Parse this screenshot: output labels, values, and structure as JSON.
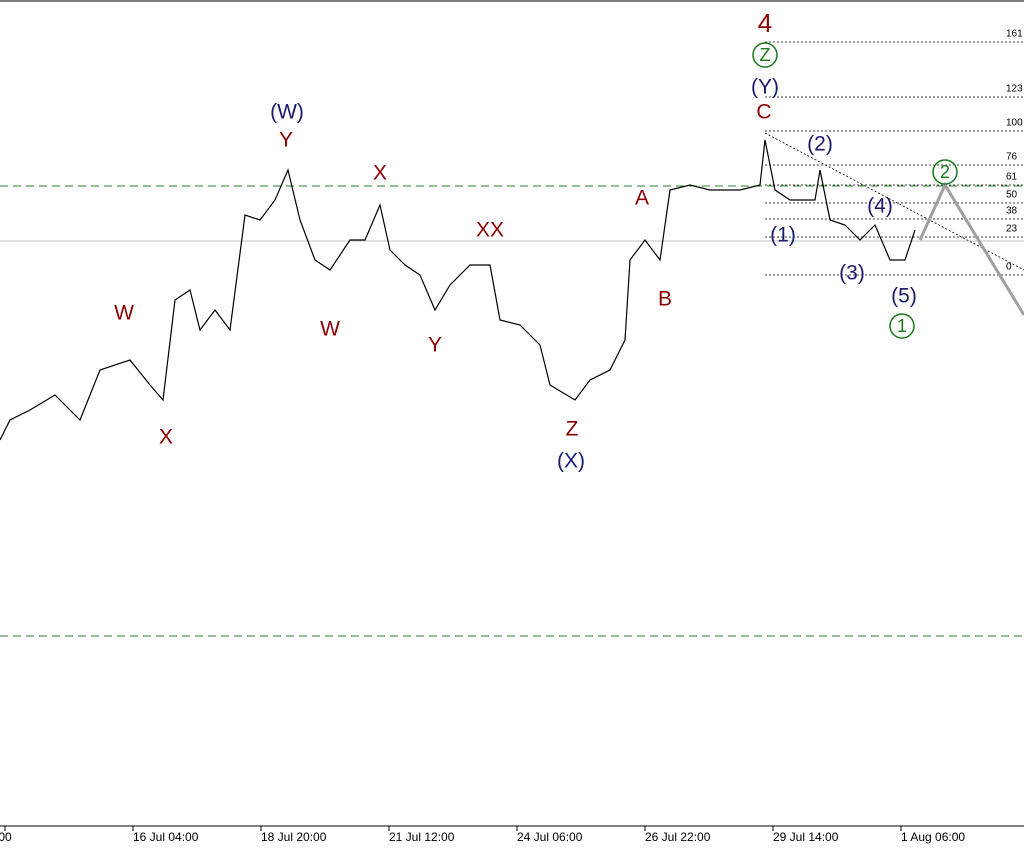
{
  "chart_data": {
    "type": "line",
    "xlim": [
      -2.5,
      509.5
    ],
    "ylim": [
      0,
      826
    ],
    "xticks": [
      {
        "value": 0,
        "label": "00"
      },
      {
        "value": 64,
        "label": "16 Jul 04:00"
      },
      {
        "value": 128,
        "label": "18 Jul 20:00"
      },
      {
        "value": 192,
        "label": "21 Jul 12:00"
      },
      {
        "value": 256,
        "label": "24 Jul 06:00"
      },
      {
        "value": 320,
        "label": "26 Jul 22:00"
      },
      {
        "value": 384,
        "label": "29 Jul 14:00"
      },
      {
        "value": 448,
        "label": "1 Aug 06:00"
      }
    ],
    "series": [
      {
        "color": "#000000",
        "x": [
          -2.5,
          2.5,
          12.5,
          25,
          37.5,
          47.5,
          62.5,
          72.5,
          79,
          85,
          92.5,
          97.5,
          105,
          112.5,
          120,
          127.5,
          135,
          141.5,
          147.5,
          155,
          162.5,
          172.5,
          180,
          187.5,
          192.5,
          200,
          207.5,
          215,
          222.5,
          232.5,
          242.5,
          247.5,
          257.5,
          267.5,
          272.5,
          285,
          292.5,
          302.5,
          310,
          312.5,
          320,
          327.5,
          332.5,
          342.5,
          352.5,
          367.5,
          377.5,
          380,
          385,
          392.5,
          405,
          407.5,
          412.5,
          420,
          427.5,
          435,
          442.5,
          450,
          455
        ],
        "values": [
          386,
          406,
          416,
          431,
          406,
          456,
          466,
          441,
          426,
          526,
          536,
          496,
          516,
          496,
          611,
          606,
          626,
          656,
          606,
          566,
          556,
          586,
          586,
          621,
          576,
          561,
          551,
          516,
          541,
          561,
          561,
          506,
          501,
          481,
          441,
          426,
          446,
          456,
          486,
          566,
          586,
          566,
          636,
          641,
          636,
          636,
          641,
          686,
          636,
          626,
          626,
          656,
          606,
          601,
          586,
          601,
          566,
          566,
          596
        ]
      },
      {
        "color": "#a0a0a0",
        "x": [
          457.5,
          470,
          509.5
        ],
        "values": [
          586,
          641,
          511
        ]
      }
    ],
    "hlines": [
      {
        "value": 640,
        "color": "#2e7d32",
        "dash": true
      },
      {
        "value": 190,
        "color": "#2e7d32",
        "dash": true
      },
      {
        "value": 585,
        "color": "#c0c0c0",
        "dash": false
      }
    ],
    "fib_levels": [
      {
        "value": 784,
        "label": "161"
      },
      {
        "value": 729,
        "label": "123"
      },
      {
        "value": 695,
        "label": "100"
      },
      {
        "value": 661,
        "label": "76"
      },
      {
        "value": 641,
        "label": "61"
      },
      {
        "value": 623,
        "label": "50"
      },
      {
        "value": 607,
        "label": "38"
      },
      {
        "value": 589,
        "label": "23"
      },
      {
        "value": 551,
        "label": "0"
      }
    ],
    "annotations": [
      {
        "text": "W",
        "color": "#8b0000"
      },
      {
        "text": "X",
        "color": "#8b0000"
      },
      {
        "text": "(W)",
        "color": "#1a1a6e"
      },
      {
        "text": "Y",
        "color": "#8b0000"
      },
      {
        "text": "X",
        "color": "#8b0000"
      },
      {
        "text": "W",
        "color": "#8b0000"
      },
      {
        "text": "Y",
        "color": "#8b0000"
      },
      {
        "text": "XX",
        "color": "#8b0000"
      },
      {
        "text": "Z",
        "color": "#8b0000"
      },
      {
        "text": "(X)",
        "color": "#1a1a6e"
      },
      {
        "text": "A",
        "color": "#8b0000"
      },
      {
        "text": "B",
        "color": "#8b0000"
      },
      {
        "text": "4",
        "color": "#8b0000"
      },
      {
        "text": "Z",
        "color": "#1a7a1a",
        "circled": true
      },
      {
        "text": "(Y)",
        "color": "#1a1a6e"
      },
      {
        "text": "C",
        "color": "#8b0000"
      },
      {
        "text": "(2)",
        "color": "#1a1a6e"
      },
      {
        "text": "(1)",
        "color": "#1a1a6e"
      },
      {
        "text": "(4)",
        "color": "#1a1a6e"
      },
      {
        "text": "(3)",
        "color": "#1a1a6e"
      },
      {
        "text": "(5)",
        "color": "#1a1a6e"
      },
      {
        "text": "1",
        "color": "#1a7a1a",
        "circled": true
      },
      {
        "text": "2",
        "color": "#1a7a1a",
        "circled": true
      }
    ]
  }
}
